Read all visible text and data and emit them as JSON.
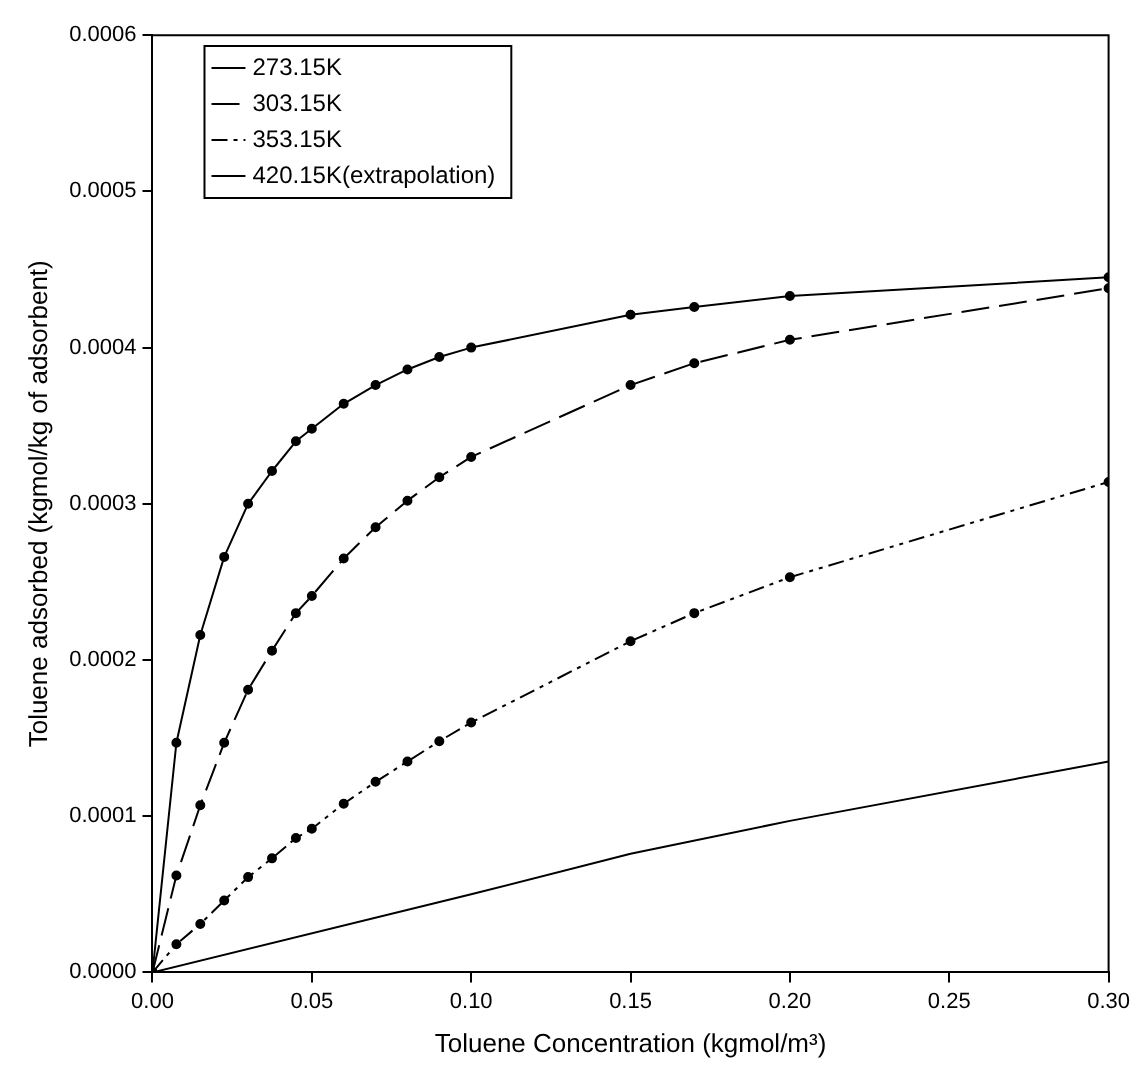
{
  "chart_data": {
    "type": "line",
    "xlabel": "Toluene Concentration (kgmol/m³)",
    "ylabel": "Toluene adsorbed (kgmol/kg of adsorbent)",
    "x": [
      0,
      0.0075,
      0.015,
      0.0225,
      0.03,
      0.0375,
      0.045,
      0.05,
      0.06,
      0.07,
      0.08,
      0.09,
      0.1,
      0.15,
      0.17,
      0.2,
      0.3
    ],
    "series": [
      {
        "name": "273.15K",
        "color": "#000000",
        "line_style": "solid",
        "marker": "circle",
        "values": [
          0,
          0.000147,
          0.000216,
          0.000266,
          0.0003,
          0.000321,
          0.00034,
          0.000348,
          0.000364,
          0.000376,
          0.000386,
          0.000394,
          0.0004,
          0.000421,
          0.000426,
          0.000433,
          0.000445
        ]
      },
      {
        "name": "303.15K",
        "color": "#000000",
        "line_style": "dashed",
        "marker": "circle",
        "values": [
          0,
          6.2e-05,
          0.000107,
          0.000147,
          0.000181,
          0.000206,
          0.00023,
          0.000241,
          0.000265,
          0.000285,
          0.000302,
          0.000317,
          0.00033,
          0.000376,
          0.00039,
          0.000405,
          0.000438
        ]
      },
      {
        "name": "353.15K",
        "color": "#000000",
        "line_style": "dotted",
        "marker": "circle",
        "values": [
          0,
          1.8e-05,
          3.1e-05,
          4.6e-05,
          6.1e-05,
          7.3e-05,
          8.6e-05,
          9.2e-05,
          0.000108,
          0.000122,
          0.000135,
          0.000148,
          0.00016,
          0.000212,
          0.00023,
          0.000253,
          0.000314
        ]
      },
      {
        "name": "420.15K(extrapolation)",
        "color": "#000000",
        "line_style": "solid",
        "marker": "none",
        "x": [
          0,
          0.1,
          0.15,
          0.2,
          0.3
        ],
        "values": [
          0,
          5e-05,
          7.6e-05,
          9.7e-05,
          0.000135
        ]
      }
    ],
    "xlim": [
      0,
      0.3
    ],
    "xticks": [
      {
        "value": 0,
        "label": "0.00"
      },
      {
        "value": 0.05,
        "label": "0.05"
      },
      {
        "value": 0.1,
        "label": "0.10"
      },
      {
        "value": 0.15,
        "label": "0.15"
      },
      {
        "value": 0.2,
        "label": "0.20"
      },
      {
        "value": 0.25,
        "label": "0.25"
      },
      {
        "value": 0.3,
        "label": "0.30"
      }
    ],
    "ylim": [
      0,
      0.0006
    ],
    "yticks": [
      {
        "value": 0,
        "label": "0.0000"
      },
      {
        "value": 0.0001,
        "label": "0.0001"
      },
      {
        "value": 0.0002,
        "label": "0.0002"
      },
      {
        "value": 0.0003,
        "label": "0.0003"
      },
      {
        "value": 0.0004,
        "label": "0.0004"
      },
      {
        "value": 0.0005,
        "label": "0.0005"
      },
      {
        "value": 0.0006,
        "label": "0.0006"
      }
    ],
    "legend": "top left"
  }
}
